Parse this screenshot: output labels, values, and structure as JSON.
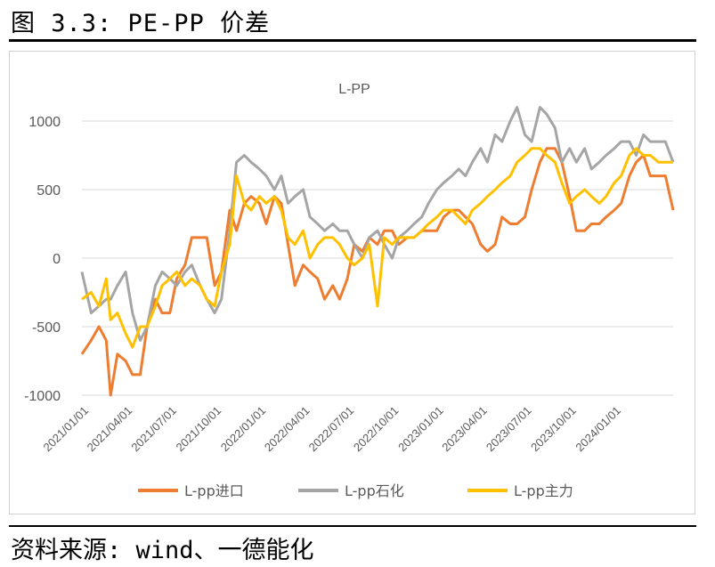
{
  "figure": {
    "title": "图 3.3: PE-PP 价差",
    "source": "资料来源: wind、一德能化"
  },
  "chart_data": {
    "type": "line",
    "title": "L-PP",
    "ylim": [
      -1000,
      1000
    ],
    "yticks": [
      1000,
      500,
      0,
      -500,
      -1000
    ],
    "yticklabels": [
      "1000",
      "500",
      "0",
      "-500",
      "-1000"
    ],
    "xticklabels": [
      "2021/01/01",
      "2021/04/01",
      "2021/07/01",
      "2021/10/01",
      "2022/01/01",
      "2022/04/01",
      "2022/07/01",
      "2022/10/01",
      "2023/01/01",
      "2023/04/01",
      "2023/07/01",
      "2023/10/01",
      "2024/01/01"
    ],
    "x_range": [
      "2021/01/01",
      "2024/05/01"
    ],
    "legend_position": "bottom",
    "grid": "horizontal",
    "series": [
      {
        "name": "L-pp进口",
        "color": "#ED7D31",
        "x": [
          "2021/01/01",
          "2021/01/20",
          "2021/02/05",
          "2021/02/20",
          "2021/03/01",
          "2021/03/15",
          "2021/04/01",
          "2021/04/15",
          "2021/05/01",
          "2021/05/15",
          "2021/06/01",
          "2021/06/15",
          "2021/07/01",
          "2021/07/15",
          "2021/08/01",
          "2021/08/15",
          "2021/09/01",
          "2021/09/15",
          "2021/10/01",
          "2021/10/15",
          "2021/11/01",
          "2021/11/15",
          "2021/12/01",
          "2021/12/15",
          "2022/01/01",
          "2022/01/15",
          "2022/02/01",
          "2022/02/15",
          "2022/03/01",
          "2022/03/15",
          "2022/04/01",
          "2022/04/15",
          "2022/05/01",
          "2022/05/15",
          "2022/06/01",
          "2022/06/15",
          "2022/07/01",
          "2022/07/15",
          "2022/08/01",
          "2022/08/15",
          "2022/09/01",
          "2022/09/15",
          "2022/10/01",
          "2022/10/15",
          "2022/11/01",
          "2022/11/15",
          "2022/12/01",
          "2022/12/15",
          "2023/01/01",
          "2023/01/15",
          "2023/02/01",
          "2023/02/15",
          "2023/03/01",
          "2023/03/15",
          "2023/04/01",
          "2023/04/15",
          "2023/05/01",
          "2023/05/15",
          "2023/06/01",
          "2023/06/15",
          "2023/07/01",
          "2023/07/15",
          "2023/08/01",
          "2023/08/15",
          "2023/09/01",
          "2023/09/15",
          "2023/10/01",
          "2023/10/15",
          "2023/11/01",
          "2023/11/15",
          "2023/12/01",
          "2023/12/15",
          "2024/01/01",
          "2024/01/15",
          "2024/02/01",
          "2024/02/15",
          "2024/03/01",
          "2024/03/15",
          "2024/04/01",
          "2024/04/15",
          "2024/05/01"
        ],
        "y": [
          -700,
          -600,
          -500,
          -600,
          -1000,
          -700,
          -750,
          -850,
          -850,
          -500,
          -300,
          -400,
          -400,
          -150,
          -50,
          150,
          150,
          150,
          -200,
          -100,
          350,
          200,
          400,
          450,
          400,
          250,
          450,
          400,
          100,
          -200,
          -50,
          -100,
          -150,
          -300,
          -200,
          -300,
          -150,
          100,
          50,
          150,
          100,
          200,
          200,
          100,
          150,
          150,
          200,
          200,
          200,
          300,
          350,
          350,
          300,
          250,
          100,
          50,
          100,
          300,
          250,
          250,
          300,
          500,
          700,
          800,
          800,
          700,
          450,
          200,
          200,
          250,
          250,
          300,
          350,
          400,
          600,
          700,
          750,
          600,
          600,
          600,
          350
        ]
      },
      {
        "name": "L-pp石化",
        "color": "#A5A5A5",
        "x": [
          "2021/01/01",
          "2021/01/20",
          "2021/02/05",
          "2021/02/20",
          "2021/03/01",
          "2021/03/15",
          "2021/04/01",
          "2021/04/15",
          "2021/05/01",
          "2021/05/15",
          "2021/06/01",
          "2021/06/15",
          "2021/07/01",
          "2021/07/15",
          "2021/08/01",
          "2021/08/15",
          "2021/09/01",
          "2021/09/15",
          "2021/10/01",
          "2021/10/15",
          "2021/11/01",
          "2021/11/15",
          "2021/12/01",
          "2021/12/15",
          "2022/01/01",
          "2022/01/15",
          "2022/02/01",
          "2022/02/15",
          "2022/03/01",
          "2022/03/15",
          "2022/04/01",
          "2022/04/15",
          "2022/05/01",
          "2022/05/15",
          "2022/06/01",
          "2022/06/15",
          "2022/07/01",
          "2022/07/15",
          "2022/08/01",
          "2022/08/15",
          "2022/09/01",
          "2022/09/15",
          "2022/10/01",
          "2022/10/15",
          "2022/11/01",
          "2022/11/15",
          "2022/12/01",
          "2022/12/15",
          "2023/01/01",
          "2023/01/15",
          "2023/02/01",
          "2023/02/15",
          "2023/03/01",
          "2023/03/15",
          "2023/04/01",
          "2023/04/15",
          "2023/05/01",
          "2023/05/15",
          "2023/06/01",
          "2023/06/15",
          "2023/07/01",
          "2023/07/15",
          "2023/08/01",
          "2023/08/15",
          "2023/09/01",
          "2023/09/15",
          "2023/10/01",
          "2023/10/15",
          "2023/11/01",
          "2023/11/15",
          "2023/12/01",
          "2023/12/15",
          "2024/01/01",
          "2024/01/15",
          "2024/02/01",
          "2024/02/15",
          "2024/03/01",
          "2024/03/15",
          "2024/04/01",
          "2024/04/15",
          "2024/05/01"
        ],
        "y": [
          -100,
          -400,
          -350,
          -300,
          -300,
          -200,
          -100,
          -400,
          -600,
          -500,
          -200,
          -100,
          -150,
          -200,
          -100,
          -50,
          -200,
          -300,
          -400,
          -300,
          200,
          700,
          750,
          700,
          650,
          600,
          500,
          600,
          400,
          450,
          500,
          300,
          250,
          200,
          250,
          200,
          200,
          100,
          0,
          150,
          200,
          100,
          0,
          150,
          200,
          250,
          300,
          400,
          500,
          550,
          600,
          650,
          600,
          700,
          800,
          700,
          900,
          850,
          1000,
          1100,
          900,
          850,
          1100,
          1050,
          950,
          700,
          800,
          700,
          800,
          650,
          700,
          750,
          800,
          850,
          850,
          750,
          900,
          850,
          850,
          850,
          700
        ]
      },
      {
        "name": "L-pp主力",
        "color": "#FFC000",
        "x": [
          "2021/01/01",
          "2021/01/20",
          "2021/02/05",
          "2021/02/20",
          "2021/03/01",
          "2021/03/15",
          "2021/04/01",
          "2021/04/15",
          "2021/05/01",
          "2021/05/15",
          "2021/06/01",
          "2021/06/15",
          "2021/07/01",
          "2021/07/15",
          "2021/08/01",
          "2021/08/15",
          "2021/09/01",
          "2021/09/15",
          "2021/10/01",
          "2021/10/15",
          "2021/11/01",
          "2021/11/15",
          "2021/12/01",
          "2021/12/15",
          "2022/01/01",
          "2022/01/15",
          "2022/02/01",
          "2022/02/15",
          "2022/03/01",
          "2022/03/15",
          "2022/04/01",
          "2022/04/15",
          "2022/05/01",
          "2022/05/15",
          "2022/06/01",
          "2022/06/15",
          "2022/07/01",
          "2022/07/15",
          "2022/08/01",
          "2022/08/15",
          "2022/09/01",
          "2022/09/15",
          "2022/10/01",
          "2022/10/15",
          "2022/11/01",
          "2022/11/15",
          "2022/12/01",
          "2022/12/15",
          "2023/01/01",
          "2023/01/15",
          "2023/02/01",
          "2023/02/15",
          "2023/03/01",
          "2023/03/15",
          "2023/04/01",
          "2023/04/15",
          "2023/05/01",
          "2023/05/15",
          "2023/06/01",
          "2023/06/15",
          "2023/07/01",
          "2023/07/15",
          "2023/08/01",
          "2023/08/15",
          "2023/09/01",
          "2023/09/15",
          "2023/10/01",
          "2023/10/15",
          "2023/11/01",
          "2023/11/15",
          "2023/12/01",
          "2023/12/15",
          "2024/01/01",
          "2024/01/15",
          "2024/02/01",
          "2024/02/15",
          "2024/03/01",
          "2024/03/15",
          "2024/04/01",
          "2024/04/15",
          "2024/05/01"
        ],
        "y": [
          -300,
          -250,
          -350,
          -150,
          -450,
          -400,
          -550,
          -650,
          -500,
          -500,
          -350,
          -200,
          -150,
          -100,
          -200,
          -150,
          -200,
          -300,
          -350,
          -100,
          100,
          600,
          400,
          350,
          450,
          400,
          450,
          350,
          150,
          100,
          200,
          0,
          100,
          150,
          150,
          100,
          0,
          -50,
          0,
          100,
          -350,
          150,
          100,
          150,
          150,
          150,
          200,
          250,
          300,
          350,
          350,
          300,
          250,
          350,
          400,
          450,
          500,
          550,
          600,
          700,
          750,
          800,
          800,
          750,
          700,
          550,
          400,
          450,
          500,
          450,
          400,
          450,
          550,
          600,
          750,
          800,
          750,
          750,
          700,
          700,
          700
        ]
      }
    ]
  }
}
